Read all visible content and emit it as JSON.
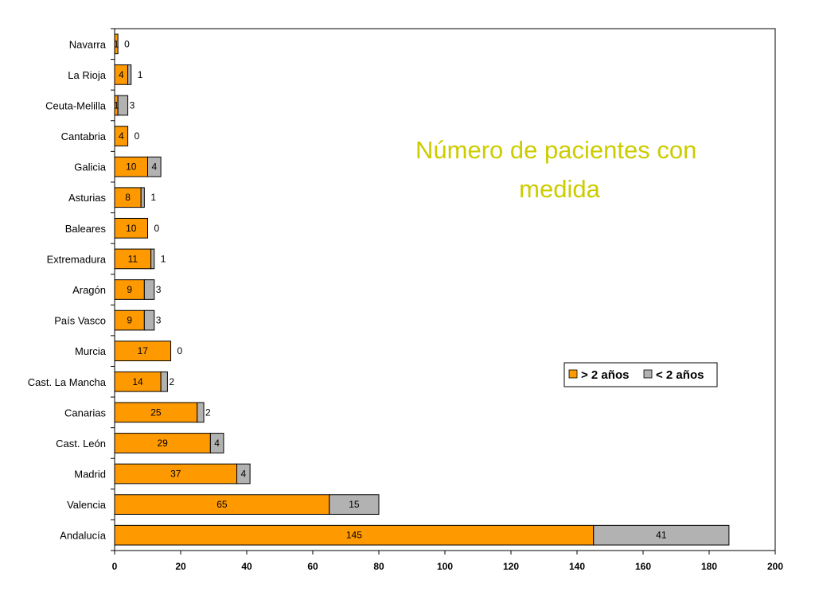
{
  "chart_data": {
    "type": "bar",
    "orientation": "horizontal",
    "stacked": true,
    "title": "Número de pacientes con medida",
    "title_lines": [
      "Número de pacientes con",
      "medida"
    ],
    "categories": [
      "Navarra",
      "La Rioja",
      "Ceuta-Melilla",
      "Cantabria",
      "Galicia",
      "Asturias",
      "Baleares",
      "Extremadura",
      "Aragón",
      "País Vasco",
      "Murcia",
      "Cast. La Mancha",
      "Canarias",
      "Cast. León",
      "Madrid",
      "Valencia",
      "Andalucía"
    ],
    "series": [
      {
        "name": "> 2 años",
        "color": "#FF9900",
        "values": [
          1,
          4,
          1,
          4,
          10,
          8,
          10,
          11,
          9,
          9,
          17,
          14,
          25,
          29,
          37,
          65,
          145
        ]
      },
      {
        "name": "< 2 años",
        "color": "#B2B2B2",
        "values": [
          0,
          1,
          3,
          0,
          4,
          1,
          0,
          1,
          3,
          3,
          0,
          2,
          2,
          4,
          4,
          15,
          41
        ]
      }
    ],
    "xlim": [
      0,
      200
    ],
    "xticks": [
      0,
      20,
      40,
      60,
      80,
      100,
      120,
      140,
      160,
      180,
      200
    ],
    "xlabel": "",
    "ylabel": "",
    "grid": false,
    "legend_position": "right",
    "title_color": "#CCCC00"
  }
}
